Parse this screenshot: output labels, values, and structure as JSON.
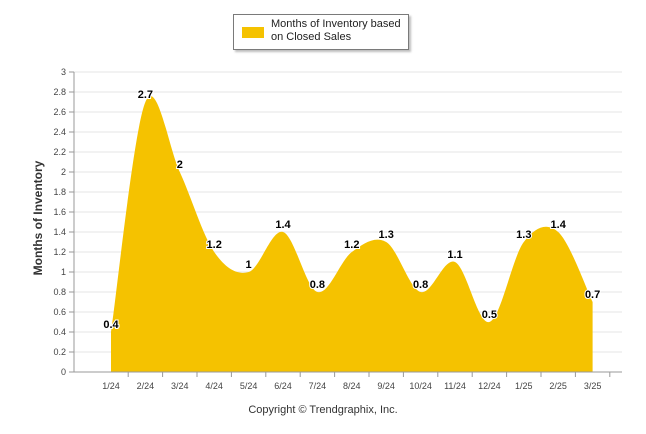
{
  "chart_data": {
    "type": "area",
    "legend": "Months of Inventory based on Closed Sales",
    "legend_position": "top-center",
    "categories": [
      "1/24",
      "2/24",
      "3/24",
      "4/24",
      "5/24",
      "6/24",
      "7/24",
      "8/24",
      "9/24",
      "10/24",
      "11/24",
      "12/24",
      "1/25",
      "2/25",
      "3/25"
    ],
    "values": [
      0.4,
      2.7,
      2,
      1.2,
      1,
      1.4,
      0.8,
      1.2,
      1.3,
      0.8,
      1.1,
      0.5,
      1.3,
      1.4,
      0.7
    ],
    "data_labels": [
      "0.4",
      "2.7",
      "2",
      "1.2",
      "1",
      "1.4",
      "0.8",
      "1.2",
      "1.3",
      "0.8",
      "1.1",
      "0.5",
      "1.3",
      "1.4",
      "0.7"
    ],
    "ylabel": "Months of Inventory",
    "xlabel": "",
    "ylim": [
      0,
      3
    ],
    "yticks": [
      "0",
      "0.2",
      "0.4",
      "0.6",
      "0.8",
      "1",
      "1.2",
      "1.4",
      "1.6",
      "1.8",
      "2",
      "2.2",
      "2.4",
      "2.6",
      "2.8",
      "3"
    ],
    "grid": true,
    "color": "#f5c200"
  },
  "footer": {
    "copyright": "Copyright © Trendgraphix, Inc."
  }
}
